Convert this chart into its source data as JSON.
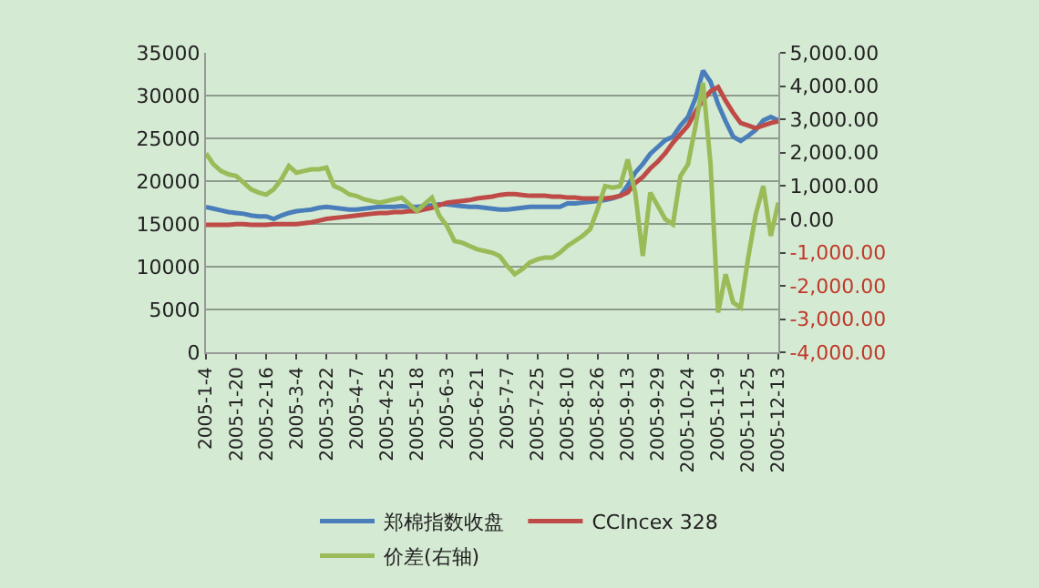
{
  "chart_data": {
    "type": "line",
    "categories": [
      "2005-1-4",
      null,
      null,
      null,
      "2005-1-20",
      null,
      null,
      null,
      "2005-2-16",
      null,
      null,
      null,
      "2005-3-4",
      null,
      null,
      null,
      "2005-3-22",
      null,
      null,
      null,
      "2005-4-7",
      null,
      null,
      null,
      "2005-4-25",
      null,
      null,
      null,
      "2005-5-18",
      null,
      null,
      null,
      "2005-6-3",
      null,
      null,
      null,
      "2005-6-21",
      null,
      null,
      null,
      "2005-7-7",
      null,
      null,
      null,
      "2005-7-25",
      null,
      null,
      null,
      "2005-8-10",
      null,
      null,
      null,
      "2005-8-26",
      null,
      null,
      null,
      "2005-9-13",
      null,
      null,
      null,
      "2005-9-29",
      null,
      null,
      null,
      "2005-10-24",
      null,
      null,
      null,
      "2005-11-9",
      null,
      null,
      null,
      "2005-11-25",
      null,
      null,
      null,
      "2005-12-13"
    ],
    "series": [
      {
        "name": "郑棉指数收盘",
        "color": "#4a7ebb",
        "values": [
          17000,
          16800,
          16600,
          16400,
          16300,
          16200,
          16000,
          15900,
          15900,
          15600,
          16000,
          16300,
          16500,
          16600,
          16700,
          16900,
          17000,
          16900,
          16800,
          16700,
          16700,
          16800,
          16900,
          17000,
          17000,
          17000,
          17100,
          17000,
          17000,
          17100,
          17200,
          17300,
          17300,
          17200,
          17100,
          17000,
          17000,
          16900,
          16800,
          16700,
          16700,
          16800,
          16900,
          17000,
          17000,
          17000,
          17000,
          17000,
          17400,
          17400,
          17500,
          17600,
          17700,
          17800,
          18000,
          18300,
          19500,
          21000,
          22000,
          23200,
          24000,
          24800,
          25200,
          26500,
          27500,
          29700,
          32900,
          31600,
          29000,
          27000,
          25200,
          24700,
          25300,
          26000,
          27100,
          27500,
          27100
        ]
      },
      {
        "name": "CCIncex 328",
        "color": "#be4b48",
        "values": [
          14900,
          14900,
          14900,
          14900,
          15000,
          15000,
          14900,
          14900,
          14900,
          15000,
          15000,
          15000,
          15000,
          15100,
          15200,
          15400,
          15600,
          15700,
          15800,
          15900,
          16000,
          16100,
          16200,
          16300,
          16300,
          16400,
          16400,
          16500,
          16500,
          16700,
          16900,
          17200,
          17500,
          17600,
          17700,
          17800,
          18000,
          18100,
          18200,
          18400,
          18500,
          18500,
          18400,
          18300,
          18300,
          18300,
          18200,
          18200,
          18100,
          18100,
          18000,
          18000,
          18000,
          18000,
          18100,
          18300,
          18700,
          19800,
          20500,
          21500,
          22300,
          23300,
          24500,
          25500,
          26500,
          28100,
          29500,
          30500,
          31000,
          29400,
          28000,
          26800,
          26500,
          26200,
          26500,
          26800,
          27000
        ]
      },
      {
        "name": "价差(右轴)",
        "color": "#9bbb59",
        "axis": "y2",
        "values": [
          1980,
          1650,
          1450,
          1350,
          1300,
          1100,
          900,
          800,
          740,
          900,
          1200,
          1600,
          1400,
          1450,
          1500,
          1500,
          1550,
          1000,
          900,
          750,
          700,
          600,
          550,
          500,
          550,
          600,
          650,
          450,
          250,
          450,
          650,
          100,
          -200,
          -650,
          -700,
          -800,
          -900,
          -950,
          -1000,
          -1100,
          -1400,
          -1650,
          -1500,
          -1300,
          -1200,
          -1150,
          -1150,
          -1000,
          -800,
          -650,
          -500,
          -300,
          300,
          1000,
          950,
          1000,
          1800,
          800,
          -1100,
          800,
          400,
          0,
          -150,
          1300,
          1650,
          2800,
          4100,
          1650,
          -2800,
          -1650,
          -2500,
          -2650,
          -1150,
          150,
          1000,
          -500,
          500
        ]
      }
    ],
    "ylim": [
      0,
      35000
    ],
    "yticks": [
      0,
      5000,
      10000,
      15000,
      20000,
      25000,
      30000,
      35000
    ],
    "y2lim": [
      -4000,
      5000
    ],
    "y2ticks": [
      {
        "value": -4000,
        "label": "-4,000.00"
      },
      {
        "value": -3000,
        "label": "-3,000.00"
      },
      {
        "value": -2000,
        "label": "-2,000.00"
      },
      {
        "value": -1000,
        "label": "-1,000.00"
      },
      {
        "value": 0,
        "label": "0.00"
      },
      {
        "value": 1000,
        "label": "1,000.00"
      },
      {
        "value": 2000,
        "label": "2,000.00"
      },
      {
        "value": 3000,
        "label": "3,000.00"
      },
      {
        "value": 4000,
        "label": "4,000.00"
      },
      {
        "value": 5000,
        "label": "5,000.00"
      }
    ],
    "grid": "y",
    "legend": "bottom",
    "marker": "none",
    "line_style": "solid"
  }
}
